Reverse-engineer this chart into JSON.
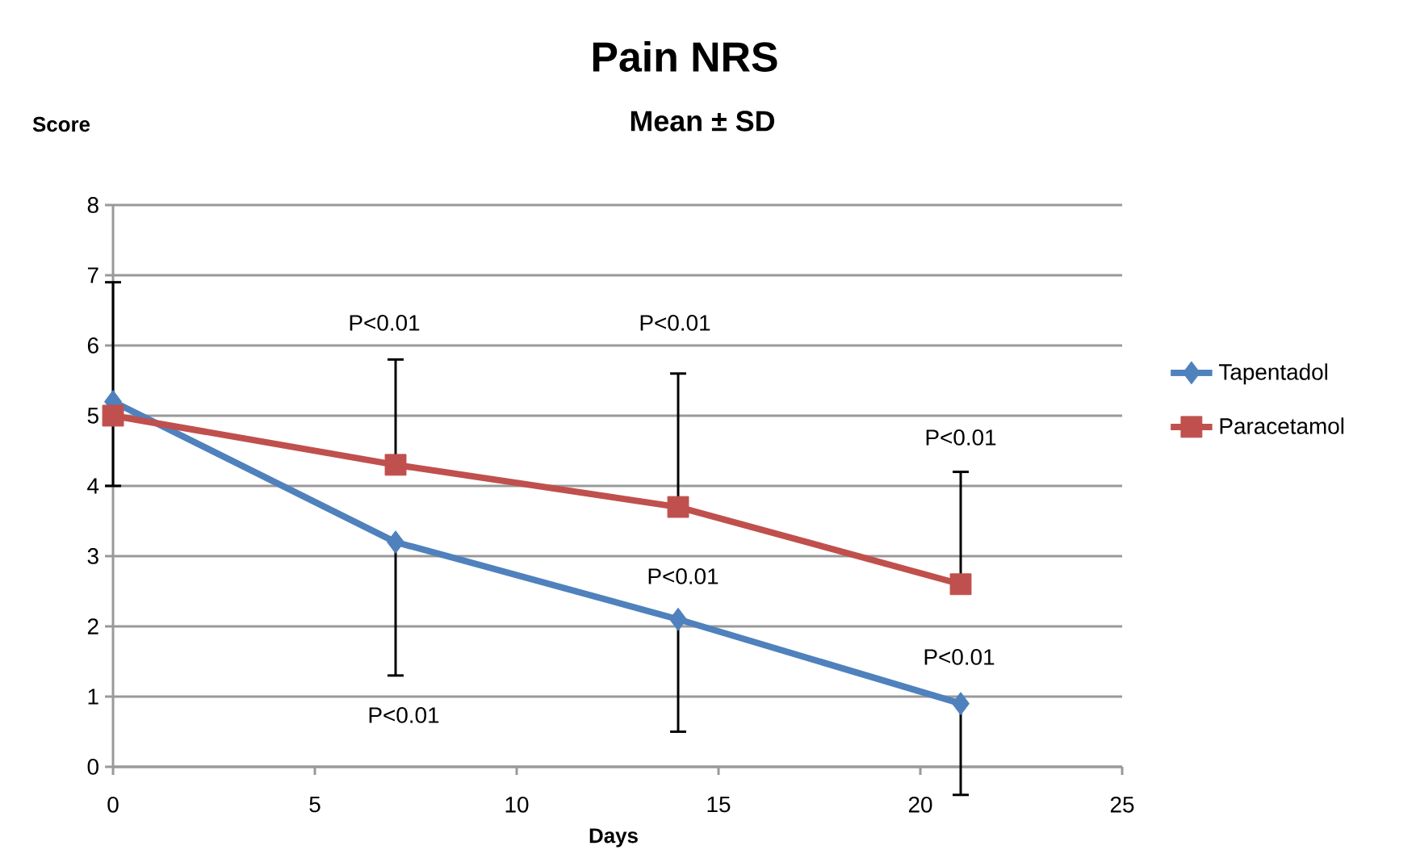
{
  "chart_data": {
    "type": "line",
    "title": "Pain NRS",
    "subtitle": "Mean  ± SD",
    "xlabel": "Days",
    "ylabel": "Score",
    "x": [
      0,
      7,
      14,
      21
    ],
    "series": [
      {
        "name": "Tapentadol",
        "color": "#4f81bd",
        "marker": "diamond",
        "values": [
          5.2,
          3.2,
          2.1,
          0.9
        ],
        "errors": [
          [
            4.0,
            5.2
          ],
          [
            1.3,
            3.2
          ],
          [
            0.5,
            2.1
          ],
          [
            -0.4,
            0.9
          ]
        ]
      },
      {
        "name": "Paracetamol",
        "color": "#c0504d",
        "marker": "square",
        "values": [
          5.0,
          4.3,
          3.7,
          2.6
        ],
        "errors": [
          [
            5.0,
            6.9
          ],
          [
            4.3,
            5.8
          ],
          [
            3.7,
            5.6
          ],
          [
            2.6,
            4.2
          ]
        ]
      }
    ],
    "annotations": [
      "P<0.01",
      "P<0.01",
      "P<0.01",
      "P<0.01",
      "P<0.01",
      "P<0.01"
    ],
    "xlim": [
      0,
      25
    ],
    "xticks": [
      0,
      5,
      10,
      15,
      20,
      25
    ],
    "ylim": [
      0,
      8
    ],
    "yticks": [
      0,
      1,
      2,
      3,
      4,
      5,
      6,
      7,
      8
    ],
    "grid": "y",
    "legend": "right",
    "line_style": "solid"
  }
}
